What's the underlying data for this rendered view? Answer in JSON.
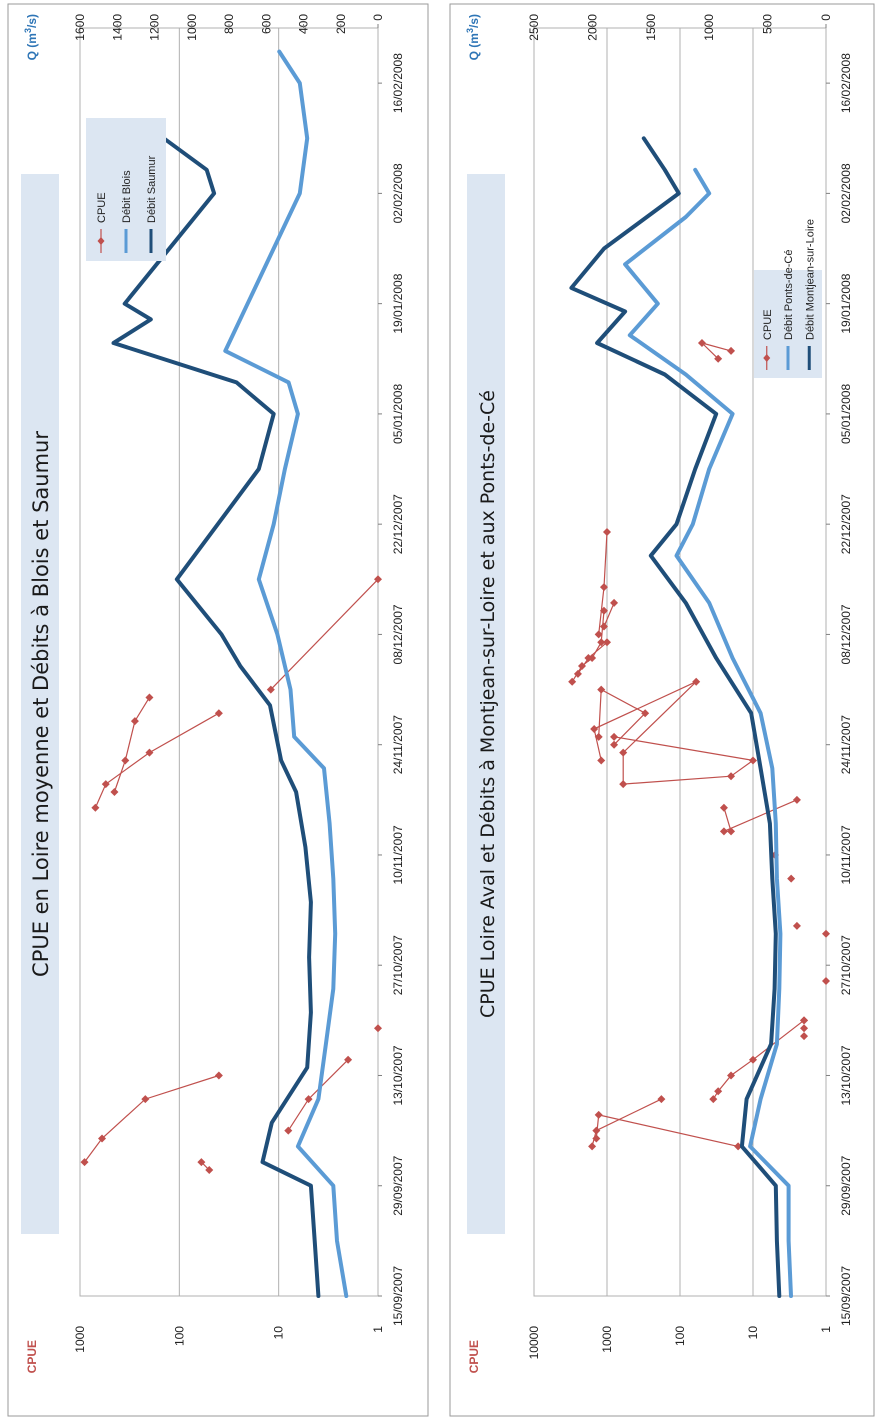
{
  "chart_data": [
    {
      "type": "line",
      "title": "CPUE en Loire moyenne et Débits à Blois et Saumur",
      "orientation": "rotated 90° counter-clockwise",
      "x_ticks": [
        "15/09/2007",
        "29/09/2007",
        "13/10/2007",
        "27/10/2007",
        "10/11/2007",
        "24/11/2007",
        "08/12/2007",
        "22/12/2007",
        "05/01/2008",
        "19/01/2008",
        "02/02/2008",
        "16/02/2008"
      ],
      "xlim": [
        "15/09/2007",
        "23/02/2008"
      ],
      "y_left": {
        "label": "CPUE",
        "scale": "log",
        "ticks": [
          "1",
          "10",
          "100",
          "1000"
        ],
        "range": [
          1,
          1000
        ]
      },
      "y_right": {
        "label": "Q (m³/s)",
        "ticks": [
          "0",
          "200",
          "400",
          "600",
          "800",
          "1000",
          "1200",
          "1400",
          "1600"
        ],
        "range": [
          0,
          1600
        ]
      },
      "grid": true,
      "legend_position": "top-right",
      "series": [
        {
          "name": "CPUE",
          "color": "#c0504d",
          "axis": "left",
          "segments": [
            [
              [
                "01/10/2007",
                50
              ],
              [
                "02/10/2007",
                60
              ]
            ],
            [
              [
                "02/10/2007",
                900
              ],
              [
                "05/10/2007",
                600
              ],
              [
                "10/10/2007",
                220
              ],
              [
                "13/10/2007",
                40
              ]
            ],
            [
              [
                "06/10/2007",
                8
              ],
              [
                "10/10/2007",
                5
              ],
              [
                "15/10/2007",
                2
              ]
            ],
            [
              [
                "19/10/2007",
                1
              ]
            ],
            [
              [
                "16/11/2007",
                700
              ],
              [
                "19/11/2007",
                550
              ],
              [
                "23/11/2007",
                200
              ],
              [
                "28/11/2007",
                40
              ]
            ],
            [
              [
                "18/11/2007",
                450
              ],
              [
                "22/11/2007",
                350
              ],
              [
                "27/11/2007",
                280
              ],
              [
                "30/11/2007",
                200
              ]
            ],
            [
              [
                "01/12/2007",
                12
              ],
              [
                "15/12/2007",
                1
              ]
            ]
          ]
        },
        {
          "name": "Débit Blois",
          "color": "#5b9bd5",
          "axis": "right",
          "points": [
            [
              "15/09/2007",
              170
            ],
            [
              "22/09/2007",
              220
            ],
            [
              "29/09/2007",
              240
            ],
            [
              "04/10/2007",
              430
            ],
            [
              "10/10/2007",
              320
            ],
            [
              "17/10/2007",
              280
            ],
            [
              "24/10/2007",
              240
            ],
            [
              "31/10/2007",
              230
            ],
            [
              "07/11/2007",
              240
            ],
            [
              "14/11/2007",
              260
            ],
            [
              "21/11/2007",
              290
            ],
            [
              "25/11/2007",
              450
            ],
            [
              "01/12/2007",
              470
            ],
            [
              "08/12/2007",
              540
            ],
            [
              "15/12/2007",
              640
            ],
            [
              "22/12/2007",
              560
            ],
            [
              "29/12/2007",
              500
            ],
            [
              "05/01/2008",
              430
            ],
            [
              "09/01/2008",
              480
            ],
            [
              "13/01/2008",
              820
            ],
            [
              "19/01/2008",
              700
            ],
            [
              "26/01/2008",
              560
            ],
            [
              "02/02/2008",
              420
            ],
            [
              "09/02/2008",
              380
            ],
            [
              "16/02/2008",
              420
            ],
            [
              "20/02/2008",
              530
            ]
          ]
        },
        {
          "name": "Débit Saumur",
          "color": "#1f4e79",
          "axis": "right",
          "points": [
            [
              "15/09/2007",
              320
            ],
            [
              "22/09/2007",
              340
            ],
            [
              "29/09/2007",
              360
            ],
            [
              "02/10/2007",
              620
            ],
            [
              "07/10/2007",
              570
            ],
            [
              "14/10/2007",
              380
            ],
            [
              "21/10/2007",
              360
            ],
            [
              "28/10/2007",
              370
            ],
            [
              "04/11/2007",
              360
            ],
            [
              "11/11/2007",
              390
            ],
            [
              "18/11/2007",
              440
            ],
            [
              "22/11/2007",
              520
            ],
            [
              "29/11/2007",
              580
            ],
            [
              "04/12/2007",
              740
            ],
            [
              "08/12/2007",
              840
            ],
            [
              "15/12/2007",
              1080
            ],
            [
              "22/12/2007",
              860
            ],
            [
              "29/12/2007",
              640
            ],
            [
              "05/01/2008",
              560
            ],
            [
              "09/01/2008",
              760
            ],
            [
              "14/01/2008",
              1420
            ],
            [
              "17/01/2008",
              1220
            ],
            [
              "19/01/2008",
              1360
            ],
            [
              "26/01/2008",
              1120
            ],
            [
              "02/02/2008",
              880
            ],
            [
              "05/02/2008",
              920
            ],
            [
              "09/02/2008",
              1150
            ]
          ]
        }
      ]
    },
    {
      "type": "line",
      "title": "CPUE Loire Aval et Débits à Montjean-sur-Loire et aux Ponts-de-Cé",
      "orientation": "rotated 90° counter-clockwise",
      "x_ticks": [
        "15/09/2007",
        "29/09/2007",
        "13/10/2007",
        "27/10/2007",
        "10/11/2007",
        "24/11/2007",
        "08/12/2007",
        "22/12/2007",
        "05/01/2008",
        "19/01/2008",
        "02/02/2008",
        "16/02/2008"
      ],
      "xlim": [
        "15/09/2007",
        "23/02/2008"
      ],
      "y_left": {
        "label": "CPUE",
        "scale": "log",
        "ticks": [
          "1",
          "10",
          "100",
          "1000",
          "10000"
        ],
        "range": [
          1,
          10000
        ]
      },
      "y_right": {
        "label": "Q (m³/s)",
        "ticks": [
          "0",
          "500",
          "1000",
          "1500",
          "2000",
          "2500"
        ],
        "range": [
          0,
          2500
        ]
      },
      "grid": true,
      "legend_position": "top-right",
      "series": [
        {
          "name": "CPUE",
          "color": "#c0504d",
          "axis": "left",
          "segments": [
            [
              [
                "04/10/2007",
                1600
              ],
              [
                "06/10/2007",
                1400
              ],
              [
                "10/10/2007",
                180
              ]
            ],
            [
              [
                "05/10/2007",
                1400
              ],
              [
                "08/10/2007",
                1300
              ],
              [
                "04/10/2007",
                16
              ]
            ],
            [
              [
                "10/10/2007",
                35
              ],
              [
                "11/10/2007",
                30
              ],
              [
                "13/10/2007",
                20
              ],
              [
                "15/10/2007",
                10
              ],
              [
                "20/10/2007",
                2
              ]
            ],
            [
              [
                "20/10/2007",
                2
              ]
            ],
            [
              [
                "19/10/2007",
                2
              ]
            ],
            [
              [
                "18/10/2007",
                2
              ]
            ],
            [
              [
                "25/10/2007",
                1
              ]
            ],
            [
              [
                "31/10/2007",
                1
              ]
            ],
            [
              [
                "01/11/2007",
                2.5
              ]
            ],
            [
              [
                "07/11/2007",
                3
              ]
            ],
            [
              [
                "10/11/2007",
                5
              ]
            ],
            [
              [
                "13/11/2007",
                20
              ],
              [
                "16/11/2007",
                25
              ]
            ],
            [
              [
                "13/11/2007",
                25
              ],
              [
                "17/11/2007",
                2.5
              ]
            ],
            [
              [
                "22/11/2007",
                1200
              ],
              [
                "26/11/2007",
                1500
              ],
              [
                "02/12/2007",
                60
              ],
              [
                "23/11/2007",
                600
              ],
              [
                "19/11/2007",
                600
              ],
              [
                "20/11/2007",
                20
              ],
              [
                "22/11/2007",
                10
              ],
              [
                "25/11/2007",
                800
              ]
            ],
            [
              [
                "25/11/2007",
                1300
              ],
              [
                "01/12/2007",
                1200
              ],
              [
                "28/11/2007",
                300
              ],
              [
                "24/11/2007",
                800
              ]
            ],
            [
              [
                "02/12/2007",
                3000
              ],
              [
                "04/12/2007",
                2200
              ],
              [
                "05/12/2007",
                1600
              ],
              [
                "07/12/2007",
                1200
              ],
              [
                "11/12/2007",
                1100
              ]
            ],
            [
              [
                "03/12/2007",
                2500
              ],
              [
                "05/12/2007",
                1800
              ],
              [
                "07/12/2007",
                1000
              ]
            ],
            [
              [
                "08/12/2007",
                1300
              ],
              [
                "14/12/2007",
                1100
              ],
              [
                "21/12/2007",
                1000
              ]
            ],
            [
              [
                "09/12/2007",
                1100
              ],
              [
                "12/12/2007",
                800
              ]
            ],
            [
              [
                "12/01/2008",
                30
              ],
              [
                "14/01/2008",
                50
              ],
              [
                "13/01/2008",
                20
              ]
            ]
          ]
        },
        {
          "name": "Débit Ponts-de-Cé",
          "color": "#5b9bd5",
          "axis": "right",
          "points": [
            [
              "15/09/2007",
              300
            ],
            [
              "22/09/2007",
              320
            ],
            [
              "29/09/2007",
              320
            ],
            [
              "04/10/2007",
              650
            ],
            [
              "10/10/2007",
              560
            ],
            [
              "17/10/2007",
              420
            ],
            [
              "24/10/2007",
              400
            ],
            [
              "31/10/2007",
              390
            ],
            [
              "07/11/2007",
              420
            ],
            [
              "14/11/2007",
              430
            ],
            [
              "21/11/2007",
              460
            ],
            [
              "28/11/2007",
              560
            ],
            [
              "05/12/2007",
              800
            ],
            [
              "12/12/2007",
              1000
            ],
            [
              "18/12/2007",
              1280
            ],
            [
              "22/12/2007",
              1140
            ],
            [
              "29/12/2007",
              1000
            ],
            [
              "05/01/2008",
              800
            ],
            [
              "10/01/2008",
              1200
            ],
            [
              "15/01/2008",
              1680
            ],
            [
              "19/01/2008",
              1440
            ],
            [
              "24/01/2008",
              1720
            ],
            [
              "30/01/2008",
              1200
            ],
            [
              "02/02/2008",
              1000
            ],
            [
              "05/02/2008",
              1120
            ]
          ]
        },
        {
          "name": "Débit Montjean-sur-Loire",
          "color": "#1f4e79",
          "axis": "right",
          "points": [
            [
              "15/09/2007",
              400
            ],
            [
              "22/09/2007",
              420
            ],
            [
              "29/09/2007",
              430
            ],
            [
              "04/10/2007",
              720
            ],
            [
              "10/10/2007",
              680
            ],
            [
              "17/10/2007",
              470
            ],
            [
              "24/10/2007",
              440
            ],
            [
              "31/10/2007",
              430
            ],
            [
              "07/11/2007",
              460
            ],
            [
              "14/11/2007",
              480
            ],
            [
              "21/11/2007",
              560
            ],
            [
              "28/11/2007",
              640
            ],
            [
              "05/12/2007",
              940
            ],
            [
              "12/12/2007",
              1200
            ],
            [
              "18/12/2007",
              1500
            ],
            [
              "22/12/2007",
              1280
            ],
            [
              "29/12/2007",
              1120
            ],
            [
              "05/01/2008",
              940
            ],
            [
              "10/01/2008",
              1380
            ],
            [
              "14/01/2008",
              1960
            ],
            [
              "18/01/2008",
              1720
            ],
            [
              "21/01/2008",
              2180
            ],
            [
              "26/01/2008",
              1900
            ],
            [
              "02/02/2008",
              1260
            ],
            [
              "05/02/2008",
              1380
            ],
            [
              "09/02/2008",
              1560
            ]
          ]
        }
      ]
    }
  ]
}
